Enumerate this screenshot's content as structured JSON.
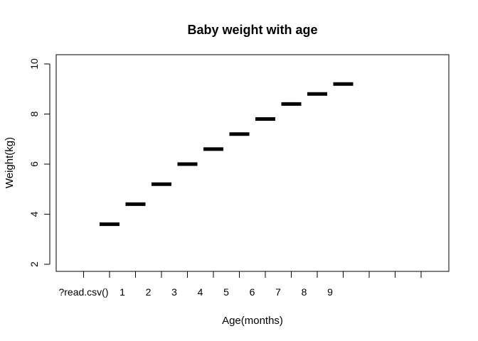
{
  "chart_data": {
    "type": "bar",
    "title": "Baby weight with age",
    "xlabel": "Age(months)",
    "ylabel": "Weight(kg)",
    "ylim": [
      2,
      10
    ],
    "yticks": [
      "2",
      "4",
      "6",
      "8",
      "10"
    ],
    "x_tick_labels": [
      "?read.csv()",
      "1",
      "2",
      "3",
      "4",
      "5",
      "6",
      "7",
      "8",
      "9"
    ],
    "categories": [
      "?read.csv()",
      "1",
      "2",
      "3",
      "4",
      "5",
      "6",
      "7",
      "8",
      "9"
    ],
    "values": [
      3.6,
      4.4,
      5.2,
      6.0,
      6.6,
      7.2,
      7.8,
      8.4,
      8.8,
      9.2
    ],
    "grid": false,
    "legend": "none",
    "mark_color": "#000000"
  }
}
